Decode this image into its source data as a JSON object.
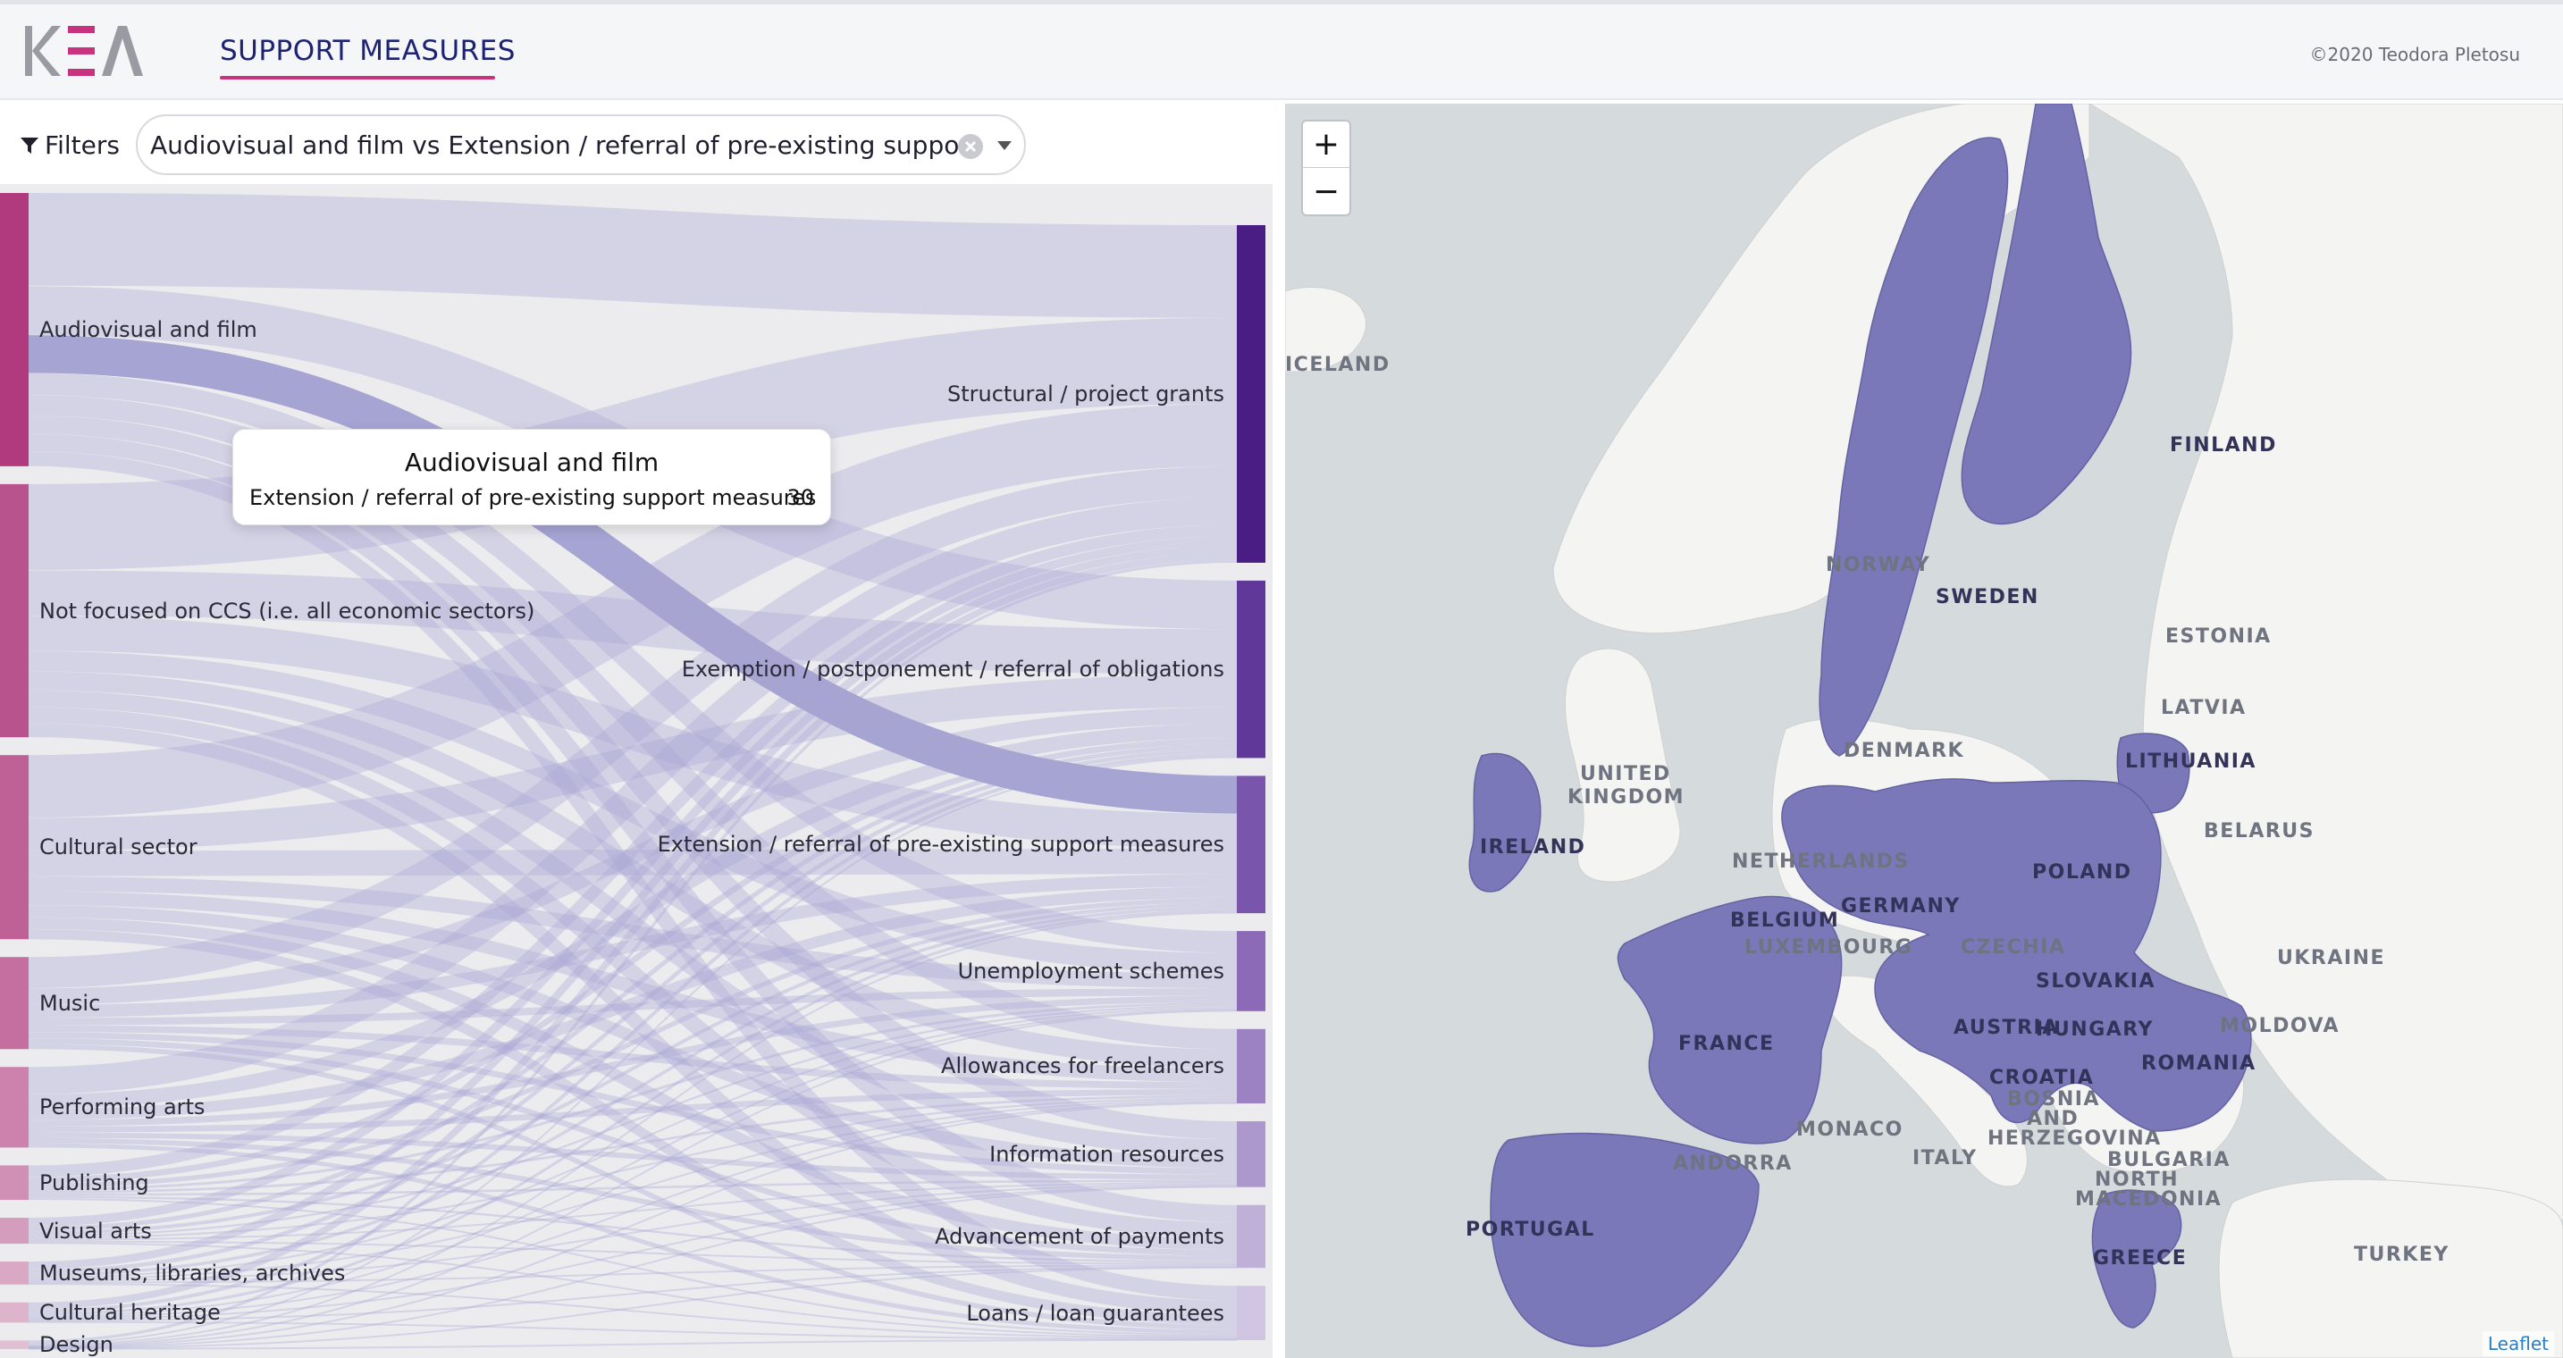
{
  "header": {
    "logo_text": "KEA",
    "nav_title": "SUPPORT MEASURES",
    "copyright": "©2020 Teodora Pletosu"
  },
  "filters": {
    "label": "Filters",
    "value": "Audiovisual and film vs Extension / referral of pre-existing support m..."
  },
  "sankey": {
    "sources": [
      {
        "label": "Audiovisual and film",
        "value": 95,
        "color": "#b03a7d"
      },
      {
        "label": "Not focused on CCS (i.e. all economic sectors)",
        "value": 88,
        "color": "#b9538d"
      },
      {
        "label": "Cultural sector",
        "value": 64,
        "color": "#bf6196"
      },
      {
        "label": "Music",
        "value": 32,
        "color": "#c56fa0"
      },
      {
        "label": "Performing arts",
        "value": 28,
        "color": "#cc82ac"
      },
      {
        "label": "Publishing",
        "value": 12,
        "color": "#d090b5"
      },
      {
        "label": "Visual arts",
        "value": 9,
        "color": "#d49cbd"
      },
      {
        "label": "Museums, libraries, archives",
        "value": 8,
        "color": "#d9a8c5"
      },
      {
        "label": "Cultural heritage",
        "value": 7,
        "color": "#ddb4cc"
      },
      {
        "label": "Design",
        "value": 3,
        "color": "#e2c0d4"
      }
    ],
    "targets": [
      {
        "label": "Structural / project grants",
        "value": 118,
        "color": "#4a1d84"
      },
      {
        "label": "Exemption / postponement / referral of obligations",
        "value": 62,
        "color": "#60389a"
      },
      {
        "label": "Extension / referral of pre-existing support measures",
        "value": 48,
        "color": "#7a55ac"
      },
      {
        "label": "Unemployment schemes",
        "value": 28,
        "color": "#8c6ab8"
      },
      {
        "label": "Allowances for freelancers",
        "value": 26,
        "color": "#9d82c3"
      },
      {
        "label": "Information resources",
        "value": 23,
        "color": "#ad98cd"
      },
      {
        "label": "Advancement of payments",
        "value": 22,
        "color": "#bfb0d8"
      },
      {
        "label": "Loans / loan guarantees",
        "value": 19,
        "color": "#d0c6e3"
      }
    ],
    "highlight": {
      "source": "Audiovisual and film",
      "target": "Extension / referral of pre-existing support measures",
      "value": 30
    }
  },
  "tooltip": {
    "title": "Audiovisual and film",
    "row_label": "Extension / referral of pre-existing support measures",
    "row_value": "30"
  },
  "map": {
    "zoom_in": "+",
    "zoom_out": "−",
    "attribution": "Leaflet",
    "highlight_color": "#7a78b8",
    "countries_highlighted": [
      "FINLAND",
      "SWEDEN",
      "IRELAND",
      "GERMANY",
      "BELGIUM",
      "LUXEMBOURG",
      "POLAND",
      "FRANCE",
      "AUSTRIA",
      "SLOVAKIA",
      "HUNGARY",
      "CROATIA",
      "ROMANIA",
      "PORTUGAL",
      "GREECE",
      "LITHUANIA"
    ],
    "labels": {
      "iceland": "ICELAND",
      "norway": "NORWAY",
      "finland": "FINLAND",
      "sweden": "SWEDEN",
      "estonia": "ESTONIA",
      "latvia": "LATVIA",
      "lithuania": "LITHUANIA",
      "denmark": "DENMARK",
      "united_kingdom": "UNITED",
      "united_kingdom2": "KINGDOM",
      "ireland": "IRELAND",
      "netherlands": "NETHERLANDS",
      "germany": "GERMANY",
      "belgium": "BELGIUM",
      "luxembourg": "LUXEMBOURG",
      "poland": "POLAND",
      "belarus": "BELARUS",
      "czechia": "CZECHIA",
      "slovakia": "SLOVAKIA",
      "ukraine": "UKRAINE",
      "moldova": "MOLDOVA",
      "austria": "AUSTRIA",
      "hungary": "HUNGARY",
      "france": "FRANCE",
      "croatia": "CROATIA",
      "romania": "ROMANIA",
      "bosnia1": "BOSNIA",
      "bosnia2": "AND",
      "bosnia3": "HERZEGOVINA",
      "monaco": "MONACO",
      "italy": "ITALY",
      "andorra": "ANDORRA",
      "bulgaria": "BULGARIA",
      "north_macedonia1": "NORTH",
      "north_macedonia2": "MACEDONIA",
      "portugal": "PORTUGAL",
      "greece": "GREECE",
      "turkey": "TURKEY"
    }
  }
}
